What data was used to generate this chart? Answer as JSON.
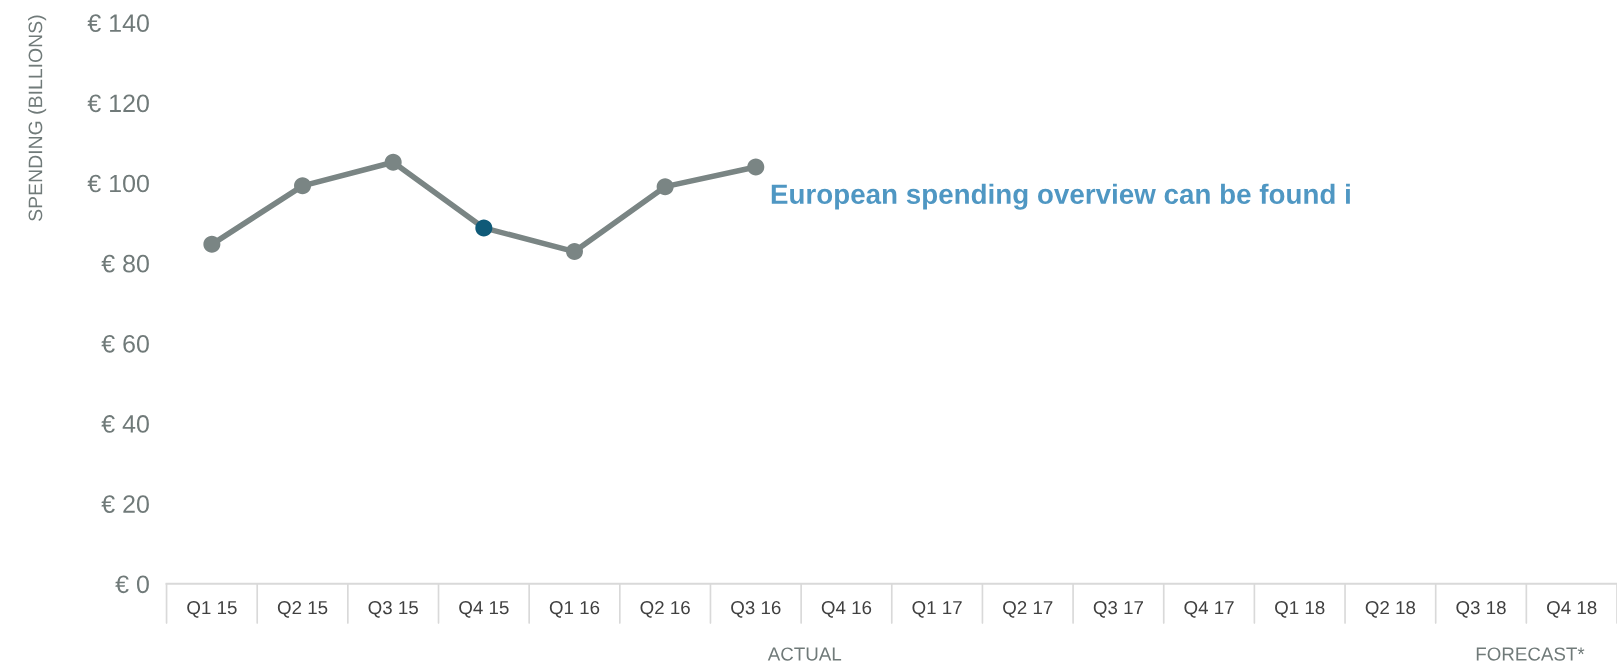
{
  "chart_data": {
    "type": "line",
    "ylabel": "SPENDING (BILLIONS)",
    "categories": [
      "Q1 15",
      "Q2 15",
      "Q3 15",
      "Q4 15",
      "Q1 16",
      "Q2 16",
      "Q3 16",
      "Q4 16",
      "Q1 17",
      "Q2 17",
      "Q3 17",
      "Q4 17",
      "Q1 18",
      "Q2 18",
      "Q3 18",
      "Q4 18"
    ],
    "series": [
      {
        "color": "#7a8584",
        "colors": [
          "#7a8584",
          "#7a8584",
          "#7a8584",
          "#0f5a78",
          "#7a8584",
          "#7a8584",
          "#7a8584",
          null,
          null,
          null,
          null,
          null,
          null,
          null,
          null,
          null
        ],
        "values": [
          84.7,
          99.3,
          105.2,
          88.8,
          82.9,
          99.1,
          104.0,
          null,
          null,
          null,
          null,
          null,
          null,
          null,
          null,
          null
        ]
      }
    ],
    "ylim": [
      0,
      140
    ],
    "yticks": [
      {
        "value": 0,
        "label": "€ 0"
      },
      {
        "value": 20,
        "label": "€ 20"
      },
      {
        "value": 40,
        "label": "€ 40"
      },
      {
        "value": 60,
        "label": "€ 60"
      },
      {
        "value": 80,
        "label": "€ 80"
      },
      {
        "value": 100,
        "label": "€ 100"
      },
      {
        "value": 120,
        "label": "€ 120"
      },
      {
        "value": 140,
        "label": "€ 140"
      }
    ],
    "annotations": [
      "European spending overview can be found i",
      "ACTUAL",
      "FORECAST*"
    ],
    "grid": false,
    "legend": false,
    "marker": "circle",
    "line_style": "solid"
  }
}
